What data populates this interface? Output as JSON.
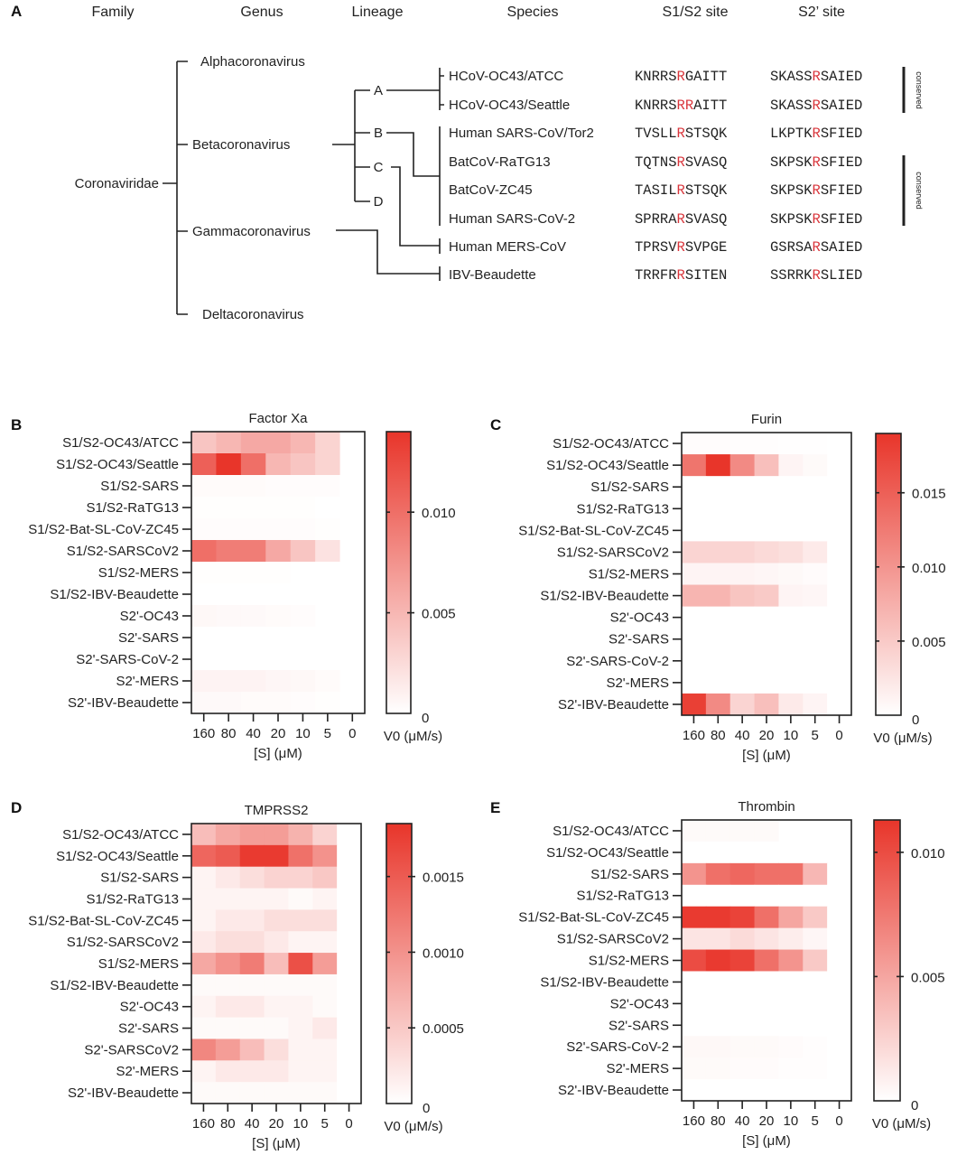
{
  "panel_a": {
    "letter": "A",
    "headers": {
      "family": "Family",
      "genus": "Genus",
      "lineage": "Lineage",
      "species": "Species",
      "s1s2": "S1/S2 site",
      "s2p": "S2’ site"
    },
    "family": "Coronaviridae",
    "genera": [
      "Alphacoronavirus",
      "Betacoronavirus",
      "Gammacoronavirus",
      "Deltacoronavirus"
    ],
    "lineages": [
      "A",
      "B",
      "C",
      "D"
    ],
    "species": [
      {
        "name": "HCoV-OC43/ATCC",
        "s1s2": {
          "pre": "KNRRS",
          "hl": "R",
          "post": "GAITT"
        },
        "s2p": {
          "pre": "SKASS",
          "hl": "R",
          "post": "SAIED"
        }
      },
      {
        "name": "HCoV-OC43/Seattle",
        "s1s2": {
          "pre": "KNRRS",
          "hl": "RR",
          "post": "AITT"
        },
        "s2p": {
          "pre": "SKASS",
          "hl": "R",
          "post": "SAIED"
        }
      },
      {
        "name": "Human SARS-CoV/Tor2",
        "s1s2": {
          "pre": "TVSLL",
          "hl": "R",
          "post": "STSQK"
        },
        "s2p": {
          "pre": "LKPTK",
          "hl": "R",
          "post": "SFIED"
        }
      },
      {
        "name": "BatCoV-RaTG13",
        "s1s2": {
          "pre": "TQTNS",
          "hl": "R",
          "post": "SVASQ"
        },
        "s2p": {
          "pre": "SKPSK",
          "hl": "R",
          "post": "SFIED"
        }
      },
      {
        "name": "BatCoV-ZC45",
        "s1s2": {
          "pre": "TASIL",
          "hl": "R",
          "post": "STSQK"
        },
        "s2p": {
          "pre": "SKPSK",
          "hl": "R",
          "post": "SFIED"
        }
      },
      {
        "name": "Human SARS-CoV-2",
        "s1s2": {
          "pre": "SPRRA",
          "hl": "R",
          "post": "SVASQ"
        },
        "s2p": {
          "pre": "SKPSK",
          "hl": "R",
          "post": "SFIED"
        }
      },
      {
        "name": "Human MERS-CoV",
        "s1s2": {
          "pre": "TPRSV",
          "hl": "R",
          "post": "SVPGE"
        },
        "s2p": {
          "pre": "GSRSA",
          "hl": "R",
          "post": "SAIED"
        }
      },
      {
        "name": "IBV-Beaudette",
        "s1s2": {
          "pre": "TRRFR",
          "hl": "R",
          "post": "SITEN"
        },
        "s2p": {
          "pre": "SSRRK",
          "hl": "R",
          "post": "SLIED"
        }
      }
    ],
    "conserved_label": "conserved",
    "highlight_color": "#d9343a"
  },
  "chart_data": [
    {
      "type": "heatmap",
      "letter": "B",
      "title": "Factor Xa",
      "xlabel": "[S] (μM)",
      "colorbar_label": "V0 (μM/s)",
      "x": [
        "160",
        "80",
        "40",
        "20",
        "10",
        "5",
        "0"
      ],
      "rows": [
        "S1/S2-OC43/ATCC",
        "S1/S2-OC43/Seattle",
        "S1/S2-SARS",
        "S1/S2-RaTG13",
        "S1/S2-Bat-SL-CoV-ZC45",
        "S1/S2-SARSCoV2",
        "S1/S2-MERS",
        "S1/S2-IBV-Beaudette",
        "S2'-OC43",
        "S2'-SARS",
        "S2'-SARS-CoV-2",
        "S2'-MERS",
        "S2'-IBV-Beaudette"
      ],
      "clim": [
        0,
        0.014
      ],
      "colorbar_ticks": [
        "0",
        "0.005",
        "0.010"
      ],
      "colorbar_tick_values": [
        0,
        0.005,
        0.01
      ],
      "colors": [
        "#ffffff",
        "#e8352a"
      ],
      "values": [
        [
          0.004,
          0.005,
          0.006,
          0.006,
          0.005,
          0.003,
          0
        ],
        [
          0.011,
          0.014,
          0.01,
          0.005,
          0.004,
          0.003,
          0
        ],
        [
          0.0003,
          0.0003,
          0.0003,
          0.0002,
          0.0002,
          0.0002,
          0
        ],
        [
          0.0001,
          0.0001,
          0.0001,
          0.0001,
          0.0001,
          0,
          0
        ],
        [
          0.0002,
          0.0002,
          0.0002,
          0.0002,
          0.0002,
          0.0001,
          0
        ],
        [
          0.01,
          0.009,
          0.009,
          0.006,
          0.004,
          0.002,
          0
        ],
        [
          0.0001,
          0.0001,
          0.0001,
          0.0001,
          0,
          0,
          0
        ],
        [
          0,
          0,
          0,
          0,
          0,
          0,
          0
        ],
        [
          0.0005,
          0.0004,
          0.0004,
          0.0003,
          0.0002,
          0,
          0
        ],
        [
          0,
          0,
          0,
          0,
          0,
          0,
          0
        ],
        [
          0,
          0,
          0,
          0,
          0,
          0,
          0
        ],
        [
          0.0008,
          0.0008,
          0.0008,
          0.0006,
          0.0005,
          0.0003,
          0
        ],
        [
          0.0004,
          0.0004,
          0.0003,
          0.0003,
          0.0002,
          0.0001,
          0
        ]
      ]
    },
    {
      "type": "heatmap",
      "letter": "C",
      "title": "Furin",
      "xlabel": "[S] (μM)",
      "colorbar_label": "V0 (μM/s)",
      "x": [
        "160",
        "80",
        "40",
        "20",
        "10",
        "5",
        "0"
      ],
      "rows": [
        "S1/S2-OC43/ATCC",
        "S1/S2-OC43/Seattle",
        "S1/S2-SARS",
        "S1/S2-RaTG13",
        "S1/S2-Bat-SL-CoV-ZC45",
        "S1/S2-SARSCoV2",
        "S1/S2-MERS",
        "S1/S2-IBV-Beaudette",
        "S2'-OC43",
        "S2'-SARS",
        "S2'-SARS-CoV-2",
        "S2'-MERS",
        "S2'-IBV-Beaudette"
      ],
      "clim": [
        0,
        0.019
      ],
      "colorbar_ticks": [
        "0",
        "0.005",
        "0.010",
        "0.015"
      ],
      "colorbar_tick_values": [
        0,
        0.005,
        0.01,
        0.015
      ],
      "colors": [
        "#ffffff",
        "#e8352a"
      ],
      "values": [
        [
          0.0003,
          0.0003,
          0.0002,
          0.0002,
          0.0001,
          0.0001,
          0
        ],
        [
          0.013,
          0.019,
          0.011,
          0.006,
          0.001,
          0.0005,
          0
        ],
        [
          0,
          0,
          0,
          0,
          0,
          0,
          0
        ],
        [
          0,
          0,
          0,
          0,
          0,
          0,
          0
        ],
        [
          0,
          0,
          0,
          0,
          0,
          0,
          0
        ],
        [
          0.004,
          0.004,
          0.004,
          0.0035,
          0.003,
          0.002,
          0
        ],
        [
          0.001,
          0.001,
          0.001,
          0.0008,
          0.0006,
          0.0004,
          0
        ],
        [
          0.007,
          0.007,
          0.0055,
          0.005,
          0.001,
          0.0008,
          0
        ],
        [
          0,
          0,
          0,
          0,
          0,
          0,
          0
        ],
        [
          0,
          0,
          0,
          0,
          0,
          0,
          0
        ],
        [
          0,
          0,
          0,
          0,
          0,
          0,
          0
        ],
        [
          0,
          0,
          0,
          0,
          0,
          0,
          0
        ],
        [
          0.018,
          0.011,
          0.004,
          0.006,
          0.002,
          0.001,
          0
        ]
      ]
    },
    {
      "type": "heatmap",
      "letter": "D",
      "title": "TMPRSS2",
      "xlabel": "[S] (μM)",
      "colorbar_label": "V0 (μM/s)",
      "x": [
        "160",
        "80",
        "40",
        "20",
        "10",
        "5",
        "0"
      ],
      "rows": [
        "S1/S2-OC43/ATCC",
        "S1/S2-OC43/Seattle",
        "S1/S2-SARS",
        "S1/S2-RaTG13",
        "S1/S2-Bat-SL-CoV-ZC45",
        "S1/S2-SARSCoV2",
        "S1/S2-MERS",
        "S1/S2-IBV-Beaudette",
        "S2'-OC43",
        "S2'-SARS",
        "S2'-SARSCoV2",
        "S2'-MERS",
        "S2'-IBV-Beaudette"
      ],
      "clim": [
        0,
        0.00185
      ],
      "colorbar_ticks": [
        "0",
        "0.0005",
        "0.0010",
        "0.0015"
      ],
      "colorbar_tick_values": [
        0,
        0.0005,
        0.001,
        0.0015
      ],
      "colors": [
        "#ffffff",
        "#e8352a"
      ],
      "values": [
        [
          0.0006,
          0.0008,
          0.0009,
          0.0009,
          0.0007,
          0.0004,
          0
        ],
        [
          0.0014,
          0.0015,
          0.0018,
          0.0018,
          0.0013,
          0.001,
          0
        ],
        [
          0.0001,
          0.0002,
          0.0003,
          0.0004,
          0.0004,
          0.0005,
          0
        ],
        [
          0.0001,
          0.0001,
          0.0001,
          0.0001,
          5e-05,
          0.0001,
          0
        ],
        [
          0.0001,
          0.0002,
          0.0002,
          0.0003,
          0.0003,
          0.0003,
          0
        ],
        [
          0.0002,
          0.0003,
          0.0003,
          0.0002,
          0.0001,
          0.0001,
          0
        ],
        [
          0.0008,
          0.001,
          0.0012,
          0.0006,
          0.0016,
          0.0009,
          0
        ],
        [
          5e-05,
          5e-05,
          5e-05,
          5e-05,
          5e-05,
          5e-05,
          0
        ],
        [
          0.0001,
          0.0002,
          0.0002,
          0.0001,
          0.0001,
          5e-05,
          0
        ],
        [
          5e-05,
          5e-05,
          5e-05,
          5e-05,
          0.0001,
          0.0002,
          0
        ],
        [
          0.0011,
          0.0009,
          0.0006,
          0.0003,
          0.0001,
          0.0001,
          0
        ],
        [
          0.0001,
          0.0002,
          0.0002,
          0.0002,
          0.0001,
          0.0001,
          0
        ],
        [
          5e-05,
          5e-05,
          5e-05,
          5e-05,
          5e-05,
          5e-05,
          0
        ]
      ]
    },
    {
      "type": "heatmap",
      "letter": "E",
      "title": "Thrombin",
      "xlabel": "[S] (μM)",
      "colorbar_label": "V0 (μM/s)",
      "x": [
        "160",
        "80",
        "40",
        "20",
        "10",
        "5",
        "0"
      ],
      "rows": [
        "S1/S2-OC43/ATCC",
        "S1/S2-OC43/Seattle",
        "S1/S2-SARS",
        "S1/S2-RaTG13",
        "S1/S2-Bat-SL-CoV-ZC45",
        "S1/S2-SARSCoV2",
        "S1/S2-MERS",
        "S1/S2-IBV-Beaudette",
        "S2'-OC43",
        "S2'-SARS",
        "S2'-SARS-CoV-2",
        "S2'-MERS",
        "S2'-IBV-Beaudette"
      ],
      "clim": [
        0,
        0.0113
      ],
      "colorbar_ticks": [
        "0",
        "0.005",
        "0.010"
      ],
      "colorbar_tick_values": [
        0,
        0.005,
        0.01
      ],
      "colors": [
        "#ffffff",
        "#e8352a"
      ],
      "values": [
        [
          0.0003,
          0.0003,
          0.0003,
          0.0003,
          0,
          0,
          0
        ],
        [
          0,
          0,
          0,
          0,
          0,
          0,
          0
        ],
        [
          0.006,
          0.008,
          0.0085,
          0.008,
          0.008,
          0.004,
          0
        ],
        [
          0,
          0,
          0,
          0,
          0,
          0,
          0
        ],
        [
          0.011,
          0.011,
          0.0105,
          0.008,
          0.005,
          0.003,
          0
        ],
        [
          0.0015,
          0.0015,
          0.002,
          0.0015,
          0.001,
          0.0005,
          0
        ],
        [
          0.01,
          0.011,
          0.0105,
          0.008,
          0.006,
          0.003,
          0
        ],
        [
          0,
          0,
          0,
          0,
          0,
          0,
          0
        ],
        [
          0,
          0,
          0,
          0,
          0,
          0,
          0
        ],
        [
          0,
          0,
          0,
          0,
          0,
          0,
          0
        ],
        [
          0.0004,
          0.0004,
          0.0003,
          0.0003,
          0.0002,
          0.0001,
          0
        ],
        [
          0.0003,
          0.0003,
          0.0002,
          0.0002,
          0.0001,
          0.0001,
          0
        ],
        [
          0,
          0,
          0,
          0,
          0,
          0,
          0
        ]
      ]
    }
  ]
}
